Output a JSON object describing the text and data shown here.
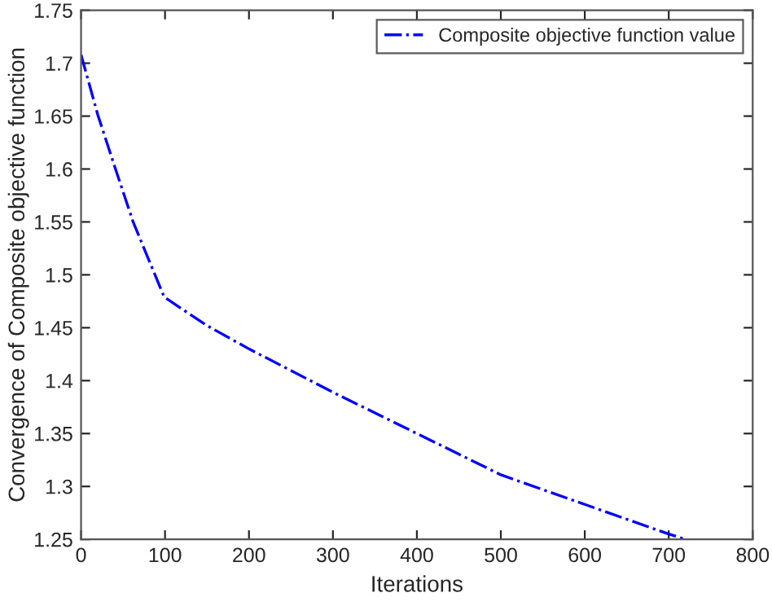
{
  "chart_data": {
    "type": "line",
    "xlabel": "Iterations",
    "ylabel": "Convergence of Composite objective function",
    "x": [
      0,
      20,
      41,
      62,
      99,
      150,
      200,
      300,
      400,
      500,
      600,
      700,
      720
    ],
    "series": [
      {
        "name": "Composite objective function value",
        "color": "#0000ff",
        "values": [
          1.708,
          1.651,
          1.6,
          1.55,
          1.479,
          1.452,
          1.43,
          1.389,
          1.35,
          1.311,
          1.283,
          1.255,
          1.25
        ]
      }
    ],
    "xlim": [
      0,
      800
    ],
    "xticks": [
      0,
      100,
      200,
      300,
      400,
      500,
      600,
      700,
      800
    ],
    "ylim": [
      1.25,
      1.75
    ],
    "yticks": [
      1.25,
      1.3,
      1.35,
      1.4,
      1.45,
      1.5,
      1.55,
      1.6,
      1.65,
      1.7,
      1.75
    ],
    "grid": false,
    "legend": "top right",
    "line_style": "dashdot",
    "marker": "none"
  }
}
